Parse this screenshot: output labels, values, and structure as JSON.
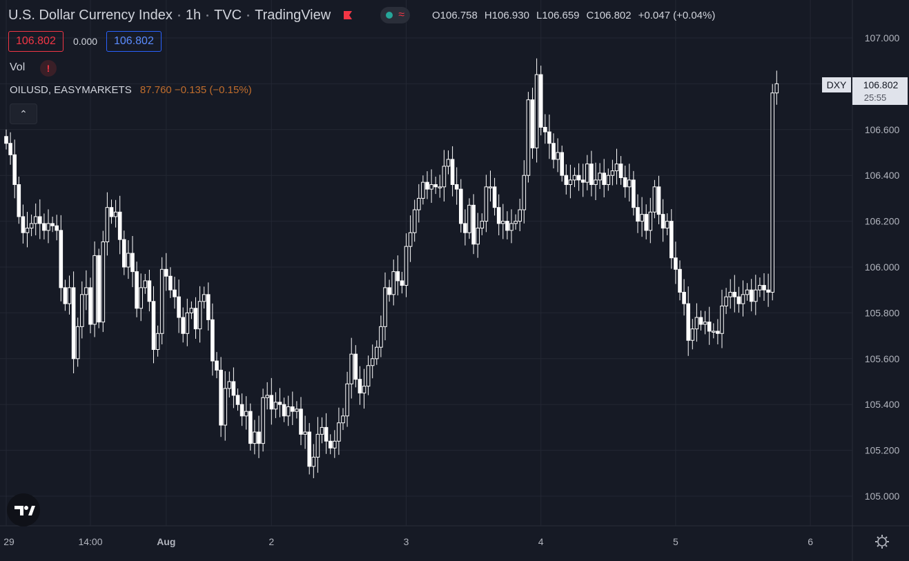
{
  "header": {
    "symbol_name": "U.S. Dollar Currency Index",
    "interval": "1h",
    "exchange": "TVC",
    "source": "TradingView",
    "ohlc": {
      "open_label": "O",
      "open": "106.758",
      "high_label": "H",
      "high": "106.930",
      "low_label": "L",
      "low": "106.659",
      "close_label": "C",
      "close": "106.802",
      "change": "+0.047 (+0.04%)"
    }
  },
  "price_boxes": {
    "sell": "106.802",
    "spread": "0.000",
    "buy": "106.802"
  },
  "indicators": {
    "volume_label": "Vol",
    "warning_glyph": "!",
    "compare_symbol": "OILUSD, EASYMARKETS",
    "compare_values": "87.760 −0.135 (−0.15%)"
  },
  "collapse_glyph": "⌃",
  "colors": {
    "background": "#161a25",
    "grid": "#232733",
    "candle": "#ffffff",
    "text": "#d1d4dc",
    "down_red": "#f23645",
    "blue": "#2962ff",
    "compare_orange": "#c06d2c"
  },
  "chart_data": {
    "type": "candlestick",
    "symbol": "DXY",
    "last_price": "106.802",
    "countdown": "25:55",
    "ylim": [
      104.85,
      107.15
    ],
    "y_ticks": [
      "107.000",
      "106.800",
      "106.600",
      "106.400",
      "106.200",
      "106.000",
      "105.800",
      "105.600",
      "105.400",
      "105.200",
      "105.000"
    ],
    "x_ticks": [
      "29",
      "14:00",
      "Aug",
      "2",
      "3",
      "4",
      "5",
      "6"
    ],
    "x_tick_index": [
      0,
      20,
      38,
      63,
      95,
      127,
      159,
      191
    ],
    "close_series": [
      106.54,
      106.49,
      106.36,
      106.22,
      106.15,
      106.17,
      106.19,
      106.22,
      106.19,
      106.16,
      106.19,
      106.18,
      106.16,
      105.91,
      105.84,
      105.91,
      105.6,
      105.74,
      105.88,
      105.91,
      105.75,
      106.05,
      105.76,
      106.11,
      106.26,
      106.22,
      106.24,
      106.12,
      106.0,
      106.06,
      105.98,
      105.82,
      105.91,
      105.94,
      105.85,
      105.64,
      105.71,
      105.99,
      105.96,
      105.9,
      105.87,
      105.78,
      105.71,
      105.8,
      105.82,
      105.73,
      105.85,
      105.88,
      105.77,
      105.59,
      105.55,
      105.31,
      105.47,
      105.5,
      105.44,
      105.4,
      105.35,
      105.37,
      105.23,
      105.28,
      105.23,
      105.43,
      105.44,
      105.38,
      105.41,
      105.4,
      105.35,
      105.39,
      105.37,
      105.38,
      105.27,
      105.28,
      105.13,
      105.17,
      105.27,
      105.3,
      105.24,
      105.21,
      105.24,
      105.32,
      105.35,
      105.49,
      105.62,
      105.51,
      105.45,
      105.48,
      105.57,
      105.6,
      105.65,
      105.74,
      105.91,
      105.88,
      105.98,
      105.94,
      105.92,
      106.09,
      106.15,
      106.25,
      106.3,
      106.37,
      106.34,
      106.36,
      106.35,
      106.35,
      106.44,
      106.47,
      106.36,
      106.34,
      106.19,
      106.15,
      106.27,
      106.1,
      106.17,
      106.2,
      106.35,
      106.35,
      106.26,
      106.19,
      106.2,
      106.16,
      106.19,
      106.2,
      106.25,
      106.4,
      106.73,
      106.52,
      106.84,
      106.61,
      106.59,
      106.54,
      106.47,
      106.5,
      106.4,
      106.36,
      106.38,
      106.4,
      106.38,
      106.37,
      106.45,
      106.36,
      106.38,
      106.41,
      106.36,
      106.4,
      106.42,
      106.45,
      106.39,
      106.35,
      106.38,
      106.26,
      106.2,
      106.23,
      106.16,
      106.24,
      106.35,
      106.23,
      106.17,
      106.2,
      106.04,
      105.99,
      105.89,
      105.84,
      105.68,
      105.73,
      105.78,
      105.75,
      105.76,
      105.72,
      105.72,
      105.71,
      105.83,
      105.87,
      105.89,
      105.87,
      105.84,
      105.88,
      105.9,
      105.85,
      105.9,
      105.92,
      105.9,
      105.89,
      106.76,
      106.8
    ]
  }
}
